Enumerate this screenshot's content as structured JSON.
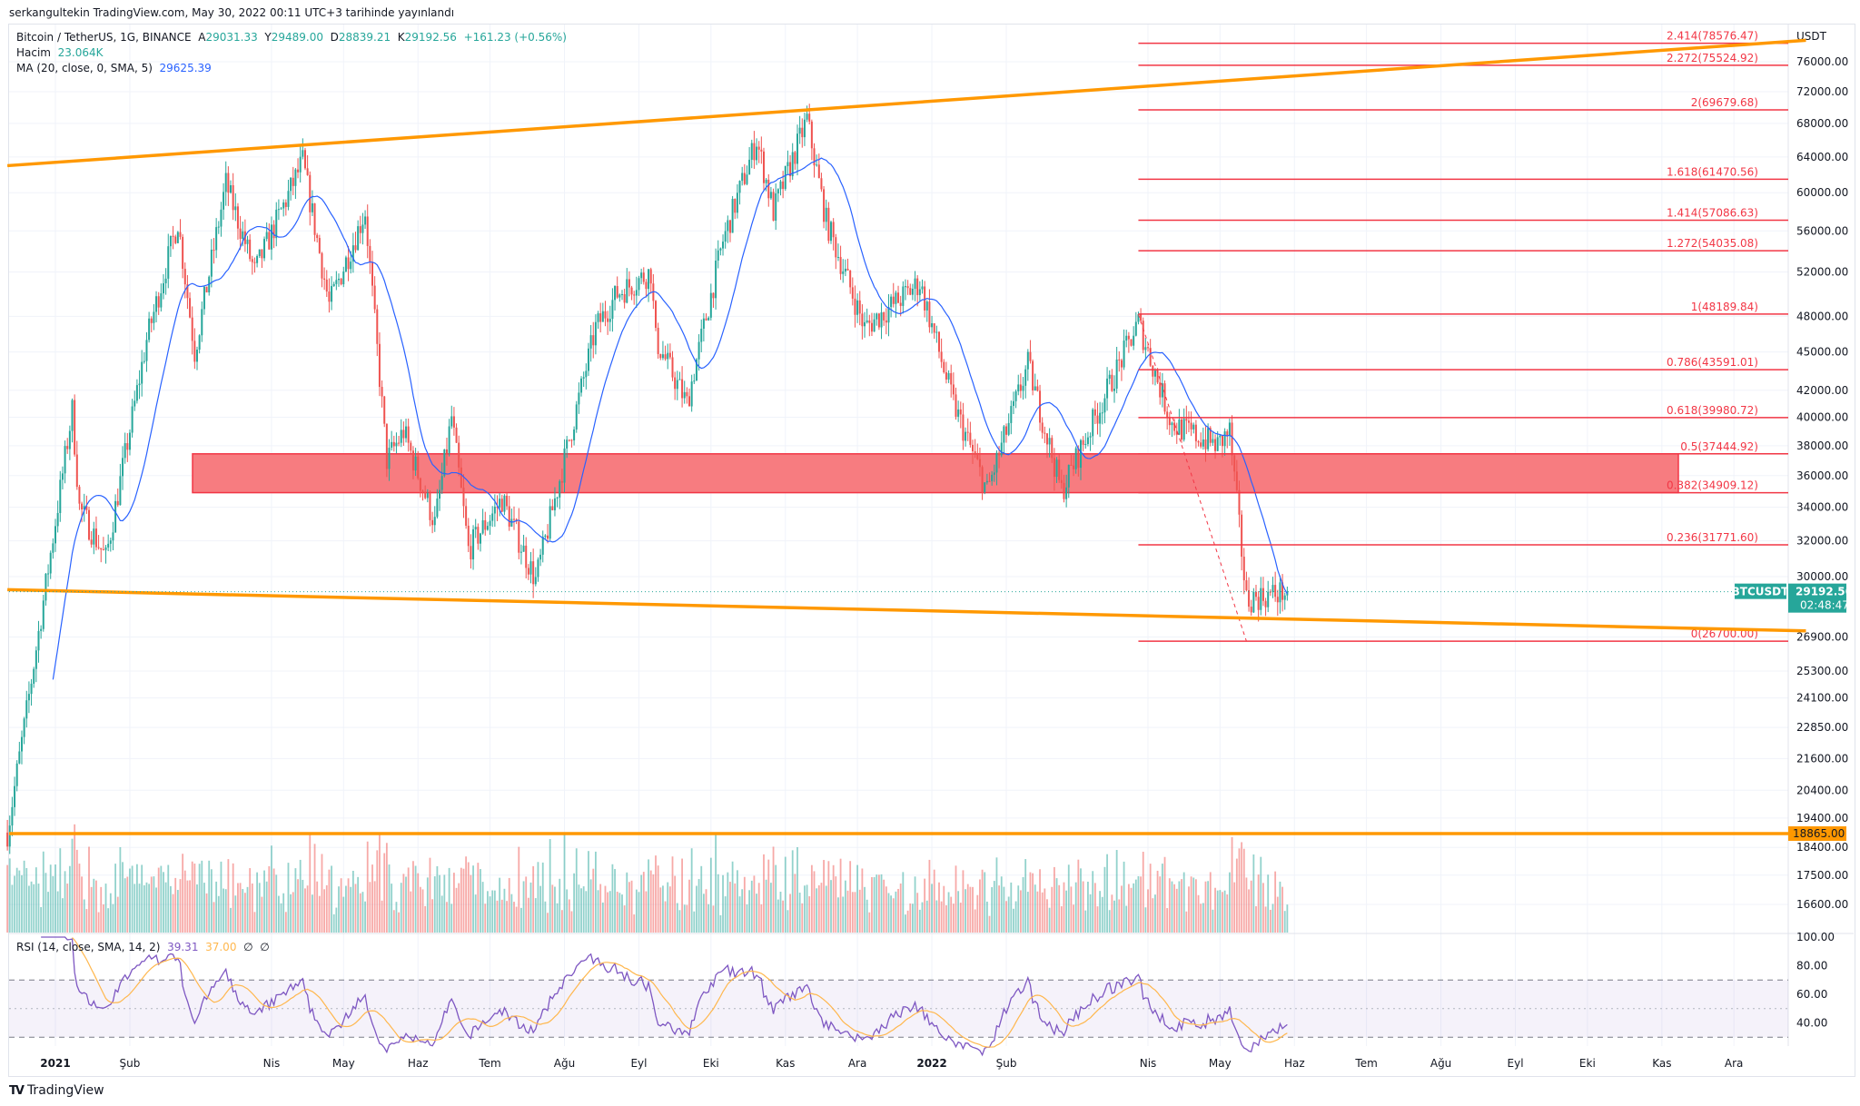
{
  "publish_note": "serkangultekin TradingView.com, May 30, 2022 00:11 UTC+3 tarihinde yayınlandı",
  "legend": {
    "symbol": "Bitcoin / TetherUS, 1G, BINANCE",
    "open_label": "A",
    "open": "29031.33",
    "high_label": "Y",
    "high": "29489.00",
    "low_label": "D",
    "low": "28839.21",
    "close_label": "K",
    "close": "29192.56",
    "change": "+161.23 (+0.56%)",
    "volume_label": "Hacim",
    "volume": "23.064K",
    "ma_label": "MA (20, close, 0, SMA, 5)",
    "ma_value": "29625.39",
    "rsi_label": "RSI (14, close, SMA, 14, 2)",
    "rsi_value": "39.31",
    "rsi_ma_value": "37.00",
    "rsi_extra1": "∅",
    "rsi_extra2": "∅"
  },
  "colors": {
    "up": "#26a69a",
    "down": "#ef5350",
    "ma": "#2962ff",
    "trend": "#ff9800",
    "fib": "#f23645",
    "zone": "#f77c80",
    "rsi": "#7e57c2",
    "rsi_ma": "#ffb74d"
  },
  "price_axis": {
    "currency": "USDT",
    "scale": "log",
    "ticks": [
      "76000.00",
      "72000.00",
      "68000.00",
      "64000.00",
      "60000.00",
      "56000.00",
      "52000.00",
      "48000.00",
      "45000.00",
      "42000.00",
      "40000.00",
      "38000.00",
      "36000.00",
      "34000.00",
      "32000.00",
      "30000.00",
      "26900.00",
      "25300.00",
      "24100.00",
      "22850.00",
      "21600.00",
      "20400.00",
      "19400.00",
      "18400.00",
      "17500.00",
      "16600.00"
    ],
    "symbol_tag": "BTCUSDT",
    "last_price": "29192.56",
    "countdown": "02:48:47",
    "support_label": "18865.00"
  },
  "rsi_axis": {
    "ticks": [
      "100.00",
      "80.00",
      "60.00",
      "40.00"
    ],
    "upper_band": 70,
    "lower_band": 30
  },
  "time_axis": [
    {
      "label": "2021",
      "date": "2021-01-01",
      "bold": true
    },
    {
      "label": "Şub",
      "date": "2021-02-01"
    },
    {
      "label": "Nis",
      "date": "2021-04-01"
    },
    {
      "label": "May",
      "date": "2021-05-01"
    },
    {
      "label": "Haz",
      "date": "2021-06-01"
    },
    {
      "label": "Tem",
      "date": "2021-07-01"
    },
    {
      "label": "Ağu",
      "date": "2021-08-01"
    },
    {
      "label": "Eyl",
      "date": "2021-09-01"
    },
    {
      "label": "Eki",
      "date": "2021-10-01"
    },
    {
      "label": "Kas",
      "date": "2021-11-01"
    },
    {
      "label": "Ara",
      "date": "2021-12-01"
    },
    {
      "label": "2022",
      "date": "2022-01-01",
      "bold": true
    },
    {
      "label": "Şub",
      "date": "2022-02-01"
    },
    {
      "label": "Nis",
      "date": "2022-04-01"
    },
    {
      "label": "May",
      "date": "2022-05-01"
    },
    {
      "label": "Haz",
      "date": "2022-06-01"
    },
    {
      "label": "Tem",
      "date": "2022-07-01"
    },
    {
      "label": "Ağu",
      "date": "2022-08-01"
    },
    {
      "label": "Eyl",
      "date": "2022-09-01"
    },
    {
      "label": "Eki",
      "date": "2022-10-01"
    },
    {
      "label": "Kas",
      "date": "2022-11-01"
    },
    {
      "label": "Ara",
      "date": "2022-12-01"
    }
  ],
  "fib_levels": [
    {
      "label": "2.414(78576.47)",
      "price": 78576.47
    },
    {
      "label": "2.272(75524.92)",
      "price": 75524.92
    },
    {
      "label": "2(69679.68)",
      "price": 69679.68
    },
    {
      "label": "1.618(61470.56)",
      "price": 61470.56
    },
    {
      "label": "1.414(57086.63)",
      "price": 57086.63
    },
    {
      "label": "1.272(54035.08)",
      "price": 54035.08
    },
    {
      "label": "1(48189.84)",
      "price": 48189.84
    },
    {
      "label": "0.786(43591.01)",
      "price": 43591.01
    },
    {
      "label": "0.618(39980.72)",
      "price": 39980.72
    },
    {
      "label": "0.5(37444.92)",
      "price": 37444.92
    },
    {
      "label": "0.382(34909.12)",
      "price": 34909.12
    },
    {
      "label": "0.236(31771.60)",
      "price": 31771.6
    },
    {
      "label": "0(26700.00)",
      "price": 26700.0
    }
  ],
  "drawings": {
    "resistance_trendline": [
      {
        "date": "2020-12-12",
        "price": 63000
      },
      {
        "date": "2022-12-31",
        "price": 79000
      }
    ],
    "support_trendline": [
      {
        "date": "2020-12-12",
        "price": 29300
      },
      {
        "date": "2022-12-31",
        "price": 27200
      }
    ],
    "support_horizontal": 18865,
    "zone": {
      "from": "2021-01-31",
      "to": "2022-12-25",
      "top": 37444.92,
      "bottom": 34909.12
    },
    "fib_start": "2022-03-28",
    "fib_swing": [
      {
        "date": "2022-03-28",
        "price": 48189.84
      },
      {
        "date": "2022-05-12",
        "price": 26700
      }
    ]
  },
  "chart_data": {
    "type": "candlestick",
    "symbol": "BTCUSDT",
    "approx_close_path": [
      [
        "2020-12-12",
        18900
      ],
      [
        "2020-12-20",
        23500
      ],
      [
        "2021-01-08",
        40500
      ],
      [
        "2021-01-11",
        34000
      ],
      [
        "2021-01-22",
        31000
      ],
      [
        "2021-02-08",
        46000
      ],
      [
        "2021-02-21",
        57000
      ],
      [
        "2021-02-28",
        45000
      ],
      [
        "2021-03-13",
        61000
      ],
      [
        "2021-03-25",
        52000
      ],
      [
        "2021-04-14",
        63500
      ],
      [
        "2021-04-25",
        49000
      ],
      [
        "2021-05-10",
        58000
      ],
      [
        "2021-05-19",
        37000
      ],
      [
        "2021-05-26",
        39000
      ],
      [
        "2021-06-08",
        33000
      ],
      [
        "2021-06-15",
        40000
      ],
      [
        "2021-06-22",
        31500
      ],
      [
        "2021-07-06",
        34500
      ],
      [
        "2021-07-20",
        29800
      ],
      [
        "2021-08-14",
        47000
      ],
      [
        "2021-08-23",
        50000
      ],
      [
        "2021-09-06",
        52000
      ],
      [
        "2021-09-08",
        46000
      ],
      [
        "2021-09-21",
        41000
      ],
      [
        "2021-10-06",
        55000
      ],
      [
        "2021-10-20",
        66000
      ],
      [
        "2021-10-27",
        58000
      ],
      [
        "2021-11-10",
        68500
      ],
      [
        "2021-11-18",
        57000
      ],
      [
        "2021-12-04",
        47000
      ],
      [
        "2021-12-27",
        51000
      ],
      [
        "2022-01-10",
        41000
      ],
      [
        "2022-01-24",
        35000
      ],
      [
        "2022-02-10",
        44000
      ],
      [
        "2022-02-24",
        35000
      ],
      [
        "2022-03-28",
        47500
      ],
      [
        "2022-04-11",
        39500
      ],
      [
        "2022-04-30",
        38000
      ],
      [
        "2022-05-05",
        39000
      ],
      [
        "2022-05-12",
        28800
      ],
      [
        "2022-05-29",
        29192.56
      ]
    ]
  }
}
